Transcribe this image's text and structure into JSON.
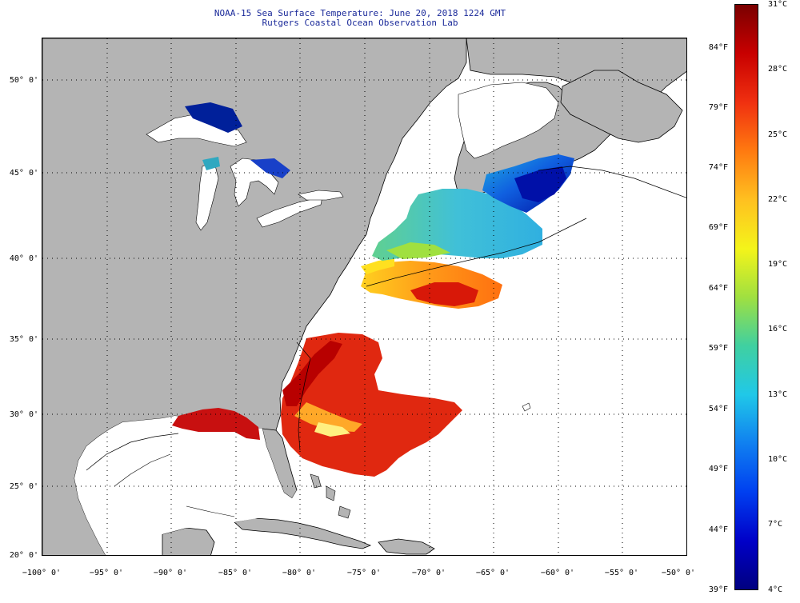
{
  "title": {
    "line1": "NOAA-15 Sea Surface Temperature:  June 20, 2018 1224 GMT",
    "line2": "Rutgers Coastal Ocean Observation Lab"
  },
  "map": {
    "region": "US East Coast, Gulf of Mexico and Great Lakes",
    "lon_range": [
      -100,
      -50
    ],
    "lat_range": [
      20,
      52
    ],
    "grid": "dotted",
    "land_color": "#b4b4b4",
    "no_data_color": "#ffffff",
    "lat_labels": [
      "50° 0'",
      "45° 0'",
      "40° 0'",
      "35° 0'",
      "30° 0'",
      "25° 0'",
      "20° 0'"
    ],
    "lon_labels": [
      "−100° 0'",
      "−95° 0'",
      "−90° 0'",
      "−85° 0'",
      "−80° 0'",
      "−75° 0'",
      "−70° 0'",
      "−65° 0'",
      "−60° 0'",
      "−55° 0'",
      "−50° 0'"
    ]
  },
  "colorbar": {
    "min_c": 4,
    "max_c": 31,
    "celsius_labels": [
      "31°C",
      "28°C",
      "25°C",
      "22°C",
      "19°C",
      "16°C",
      "13°C",
      "10°C",
      "7°C",
      "4°C"
    ],
    "fahrenheit_labels": [
      "84°F",
      "79°F",
      "74°F",
      "69°F",
      "64°F",
      "59°F",
      "54°F",
      "49°F",
      "44°F",
      "39°F"
    ],
    "colors": [
      "#7a0000",
      "#c80000",
      "#f03010",
      "#ff7a10",
      "#ffc020",
      "#f4f41a",
      "#a0e040",
      "#40d0a0",
      "#20c8e8",
      "#1080f0",
      "#0040f0",
      "#0000c8",
      "#000080"
    ]
  }
}
